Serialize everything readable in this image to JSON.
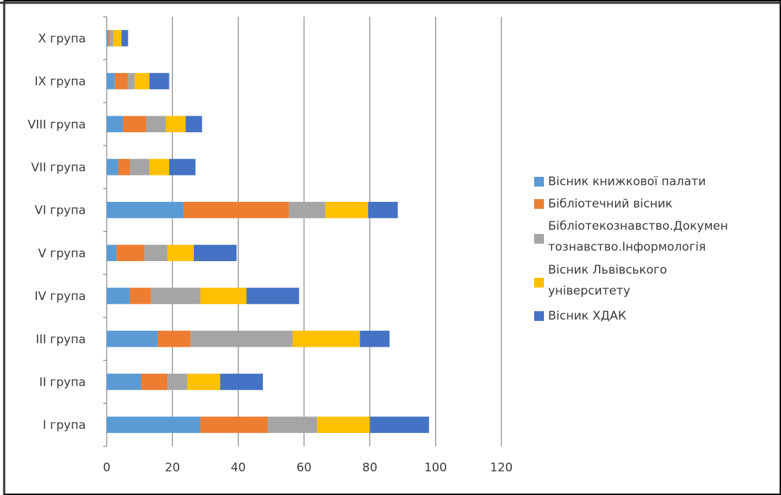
{
  "chart_data": {
    "type": "bar",
    "orientation": "horizontal",
    "stacked": true,
    "categories": [
      "I група",
      "II група",
      "III група",
      "IV група",
      "V група",
      "VI група",
      "VII група",
      "VIII група",
      "IX група",
      "X група"
    ],
    "series": [
      {
        "name": "Вісник книжкової палати",
        "color": "#5B9BD5",
        "values": [
          28.5,
          10.5,
          15.5,
          7,
          3,
          23.5,
          3.5,
          5,
          2.5,
          0.5
        ]
      },
      {
        "name": "Бібліотечний вісник",
        "color": "#ED7D31",
        "values": [
          20.5,
          8,
          10,
          6.5,
          8.5,
          32,
          3.5,
          7,
          4,
          0.5
        ]
      },
      {
        "name": "Бібліотекознавство.Документознавство.Інформологія",
        "name_lines": [
          "Бібліотекознавство.Докумен",
          "тознавство.Інформологія"
        ],
        "color": "#A5A5A5",
        "values": [
          15,
          6,
          31,
          15,
          7,
          11,
          6,
          6,
          2,
          1
        ]
      },
      {
        "name": "Вісник Львівського університету",
        "name_lines": [
          "Вісник Львівського",
          "університету"
        ],
        "color": "#FFC000",
        "values": [
          16,
          10,
          20.5,
          14,
          8,
          13,
          6,
          6,
          4.5,
          2.5
        ]
      },
      {
        "name": "Вісник ХДАК",
        "color": "#4472C4",
        "values": [
          18,
          13,
          9,
          16,
          13,
          9,
          8,
          5,
          6,
          2
        ]
      }
    ],
    "xlim": [
      0,
      120
    ],
    "xticks": [
      0,
      20,
      40,
      60,
      80,
      100,
      120
    ],
    "grid": "vertical",
    "legend_position": "right",
    "title": "",
    "xlabel": "",
    "ylabel": ""
  }
}
